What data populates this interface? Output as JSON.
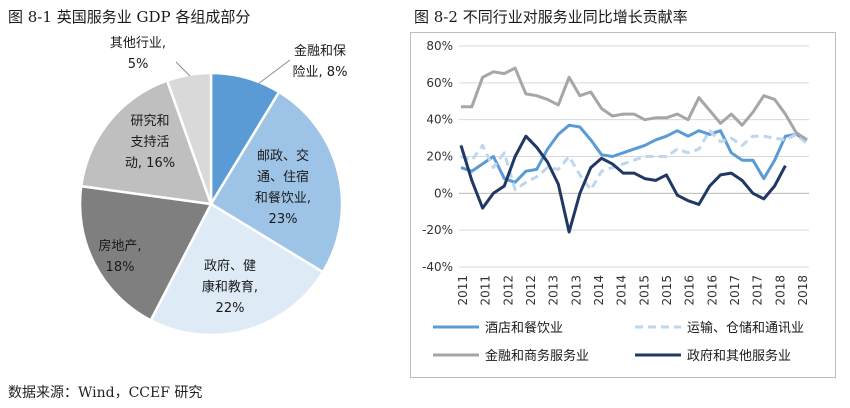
{
  "chart_data": [
    {
      "type": "pie",
      "title": "图 8-1  英国服务业 GDP 各组成部分",
      "slices": [
        {
          "label": "金融和保险业, 8%",
          "lines": [
            "金融和保",
            "险业, 8%"
          ],
          "value": 8,
          "color": "#5b9bd5"
        },
        {
          "label": "邮政、交通、住宿和餐饮业, 23%",
          "lines": [
            "邮政、交",
            "通、住宿",
            "和餐饮业,",
            "23%"
          ],
          "value": 23,
          "color": "#9dc3e6"
        },
        {
          "label": "政府、健康和教育, 22%",
          "lines": [
            "政府、健",
            "康和教育,",
            "22%"
          ],
          "value": 22,
          "color": "#deebf7"
        },
        {
          "label": "房地产, 18%",
          "lines": [
            "房地产,",
            "18%"
          ],
          "value": 18,
          "color": "#7f7f7f"
        },
        {
          "label": "研究和支持活动, 16%",
          "lines": [
            "研究和",
            "支持活",
            "动, 16%"
          ],
          "value": 16,
          "color": "#bfbfbf"
        },
        {
          "label": "其他行业, 5%",
          "lines": [
            "其他行业,",
            "5%"
          ],
          "value": 5,
          "color": "#d9d9d9"
        }
      ]
    },
    {
      "type": "line",
      "title": "图 8-2 不同行业对服务业同比增长贡献率",
      "ylim": [
        -40,
        80
      ],
      "yticks": [
        -40,
        -20,
        0,
        20,
        40,
        60,
        80
      ],
      "ytick_labels": [
        "-40%",
        "-20%",
        "0%",
        "20%",
        "40%",
        "60%",
        "80%"
      ],
      "xtick_labels": [
        "2011",
        "2011",
        "2012",
        "2012",
        "2013",
        "2013",
        "2014",
        "2014",
        "2015",
        "2015",
        "2016",
        "2016",
        "2017",
        "2017",
        "2018",
        "2018"
      ],
      "legend": {
        "position": "bottom",
        "columns": 2
      },
      "series": [
        {
          "name": "酒店和餐饮业",
          "color": "#5b9bd5",
          "dash": "solid",
          "values": [
            14,
            12,
            16,
            20,
            8,
            6,
            12,
            13,
            24,
            32,
            37,
            36,
            29,
            21,
            20,
            22,
            24,
            26,
            29,
            31,
            34,
            31,
            34,
            32,
            34,
            22,
            18,
            18,
            8,
            18,
            31,
            32,
            29
          ]
        },
        {
          "name": "运输、仓储和通讯业",
          "color": "#bdd7ee",
          "dash": "dashed",
          "values": [
            20,
            18,
            26,
            14,
            22,
            2,
            6,
            9,
            14,
            13,
            20,
            10,
            2,
            12,
            14,
            16,
            18,
            20,
            20,
            20,
            24,
            22,
            24,
            34,
            28,
            30,
            26,
            31,
            31,
            30,
            29,
            32,
            27
          ]
        },
        {
          "name": "金融和商务服务业",
          "color": "#a6a6a6",
          "dash": "solid",
          "values": [
            47,
            47,
            63,
            66,
            65,
            68,
            54,
            53,
            51,
            48,
            63,
            53,
            55,
            46,
            42,
            43,
            43,
            40,
            41,
            41,
            43,
            40,
            52,
            45,
            38,
            43,
            37,
            44,
            53,
            51,
            43,
            33,
            29
          ]
        },
        {
          "name": "政府和其他服务业",
          "color": "#203864",
          "dash": "solid",
          "values": [
            26,
            7,
            -8,
            0,
            4,
            20,
            31,
            25,
            17,
            5,
            -21,
            0,
            14,
            19,
            16,
            11,
            11,
            8,
            7,
            10,
            -1,
            -4,
            -6,
            4,
            10,
            11,
            7,
            0,
            -3,
            4,
            15,
            null,
            null
          ]
        }
      ]
    }
  ],
  "source": "数据来源：Wind，CCEF 研究"
}
